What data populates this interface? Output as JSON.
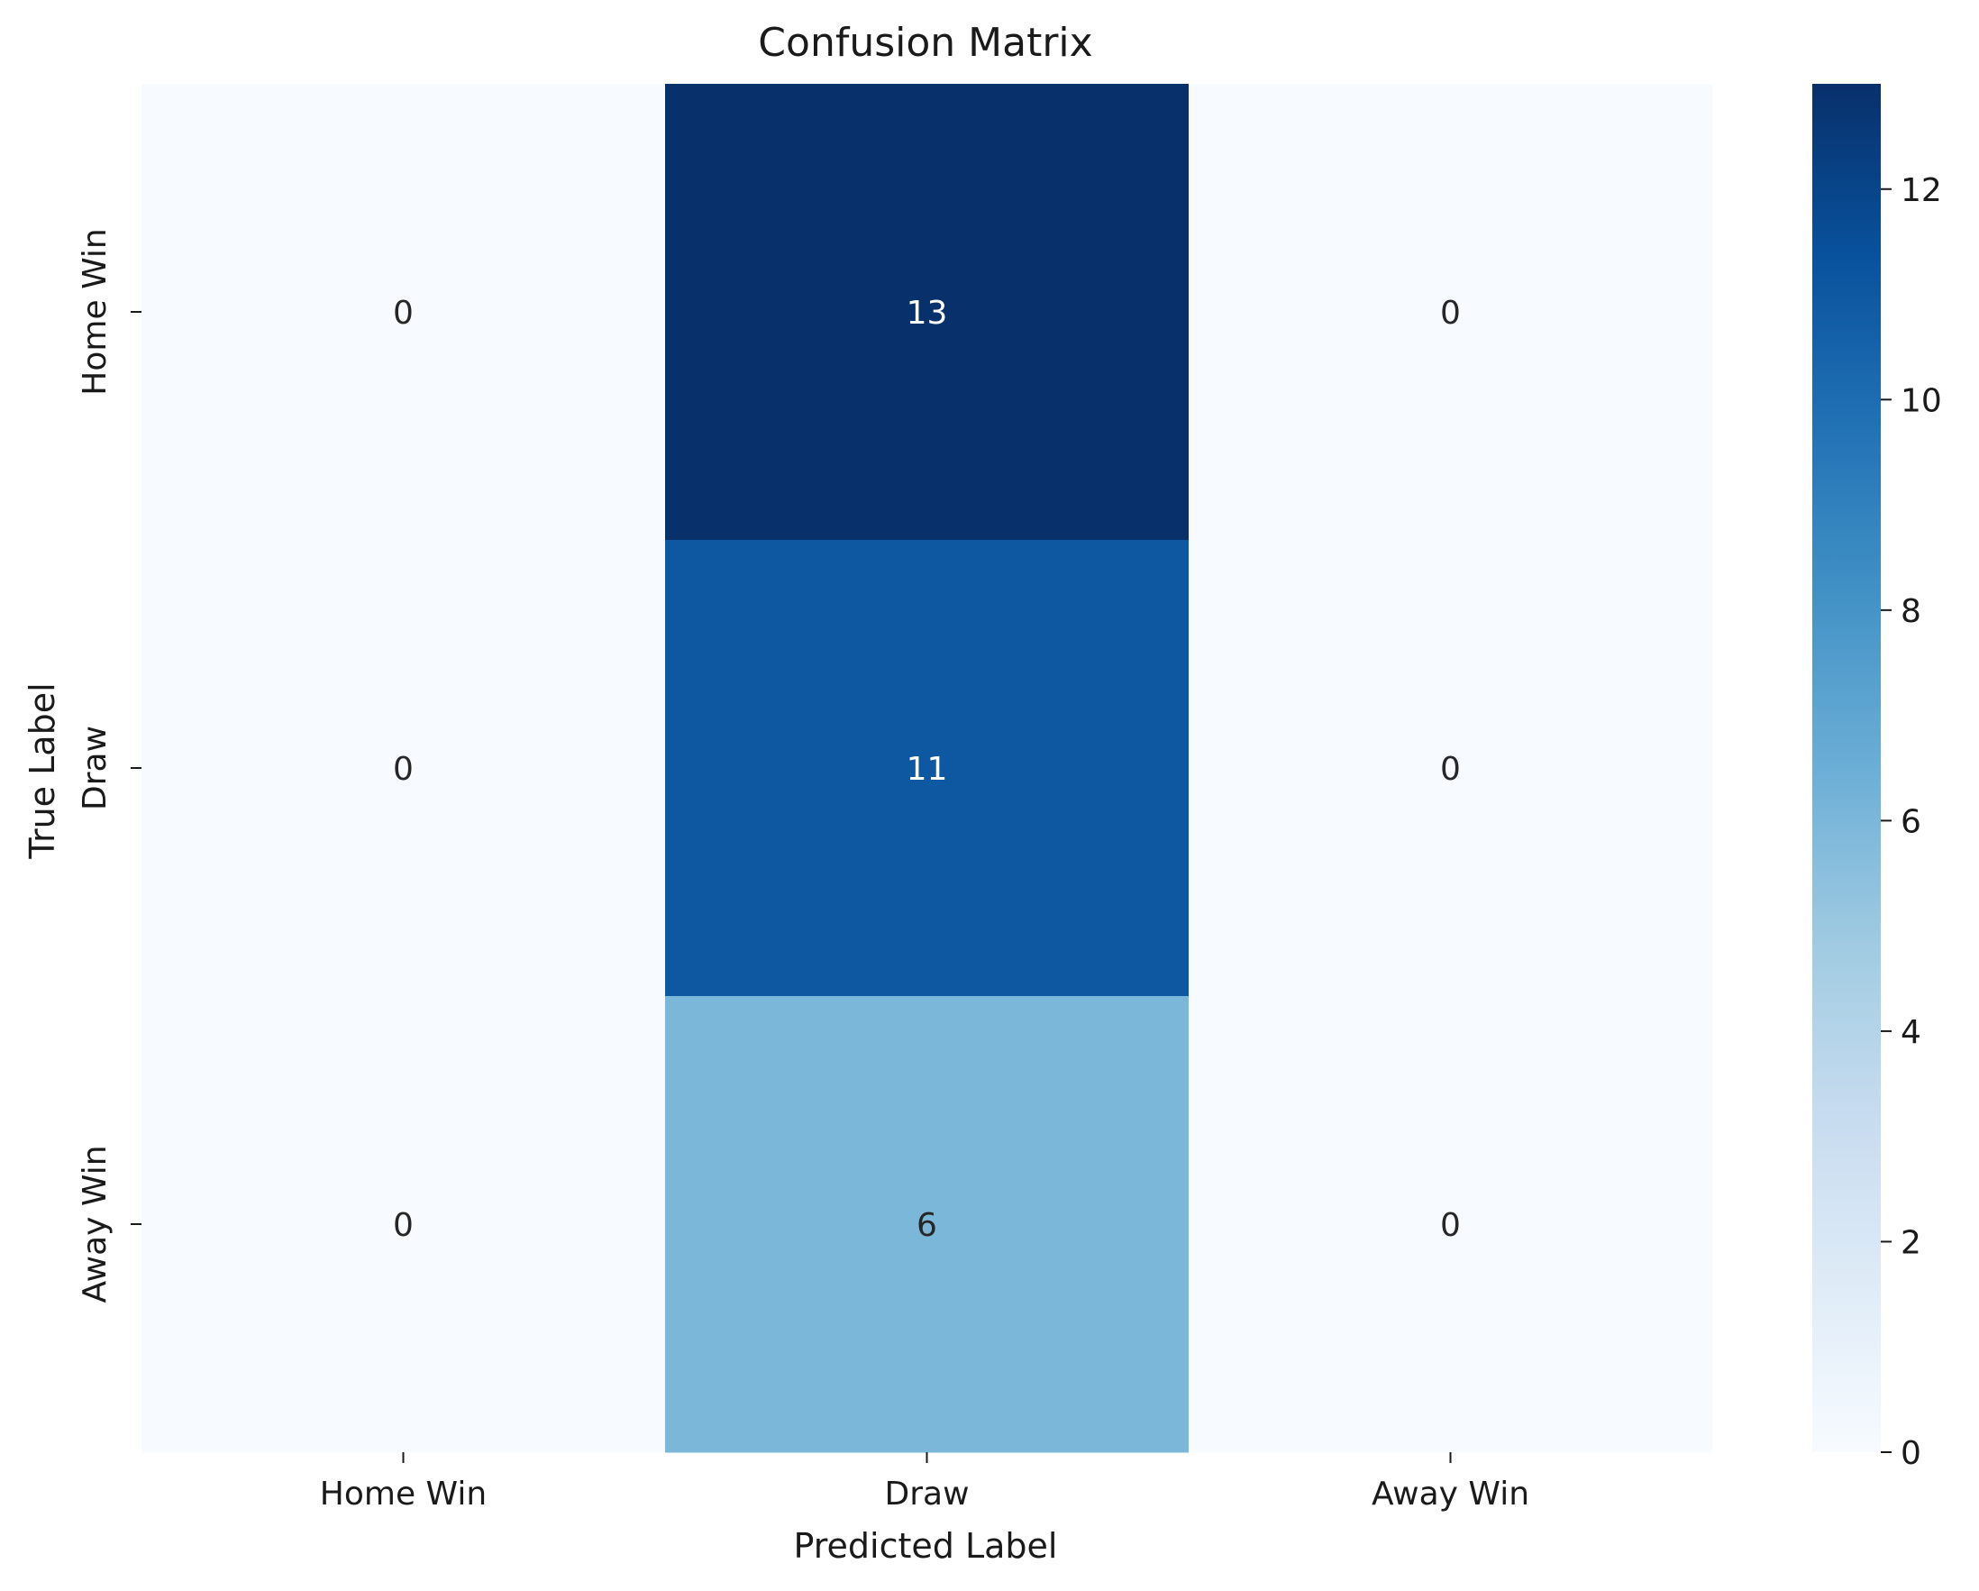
{
  "chart_data": {
    "type": "heatmap",
    "title": "Confusion Matrix",
    "xlabel": "Predicted Label",
    "ylabel": "True Label",
    "x_categories": [
      "Home Win",
      "Draw",
      "Away Win"
    ],
    "y_categories": [
      "Home Win",
      "Draw",
      "Away Win"
    ],
    "values": [
      [
        0,
        13,
        0
      ],
      [
        0,
        11,
        0
      ],
      [
        0,
        6,
        0
      ]
    ],
    "colormap": "Blues",
    "vmin": 0,
    "vmax": 13,
    "colorbar_ticks": [
      0,
      2,
      4,
      6,
      8,
      10,
      12
    ],
    "colorbar_tick_labels": [
      "0",
      "2",
      "4",
      "6",
      "8",
      "10",
      "12"
    ],
    "annotations": true,
    "colorbar": "right"
  }
}
